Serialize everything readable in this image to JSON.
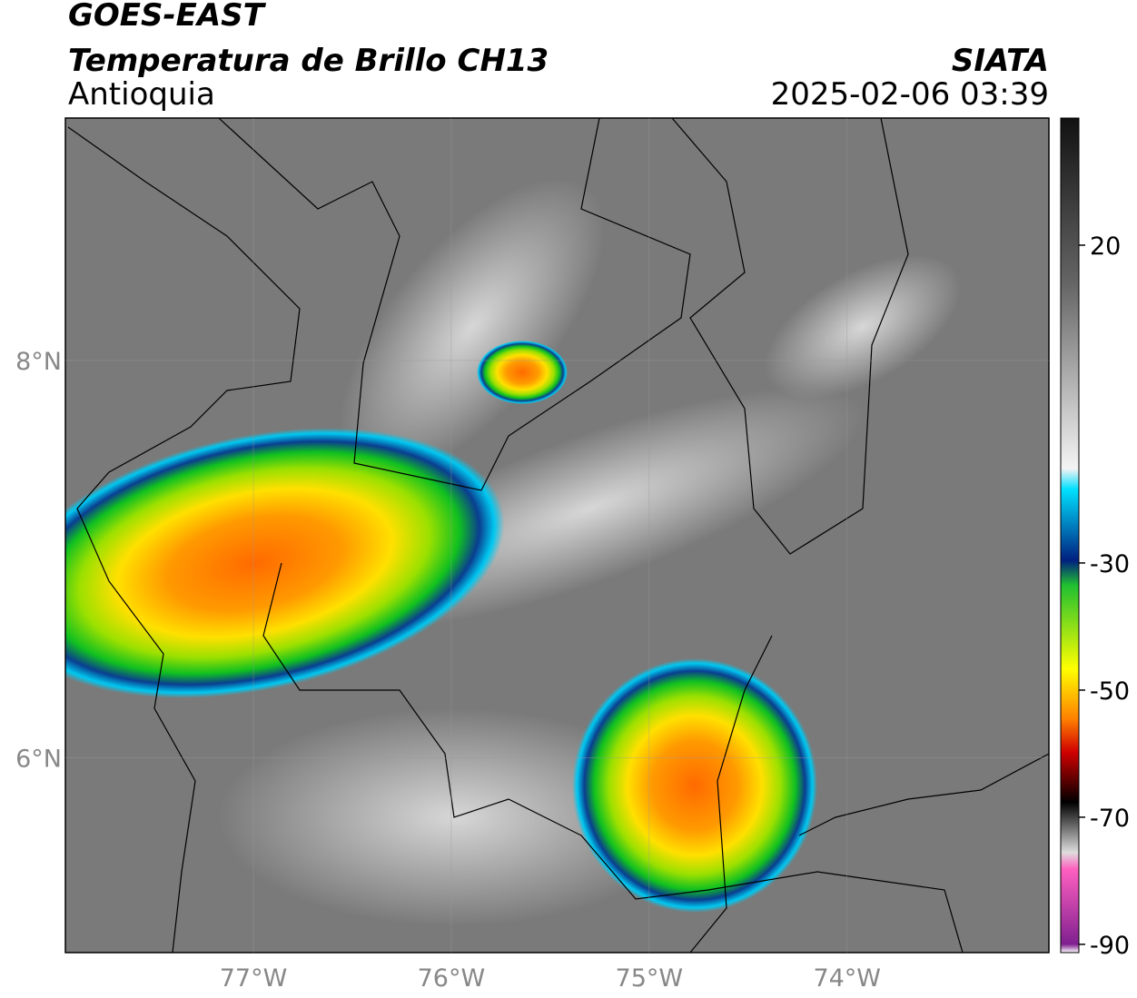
{
  "header": {
    "title": "GOES-EAST",
    "subtitle": "Temperatura de Brillo CH13",
    "region": "Antioquia",
    "source": "SIATA",
    "timestamp": "2025-02-06 03:39"
  },
  "map": {
    "lon_range": [
      -77.95,
      -72.98
    ],
    "lat_range": [
      5.02,
      9.22
    ],
    "lon_ticks": [
      {
        "value": -77,
        "label": "77°W"
      },
      {
        "value": -76,
        "label": "76°W"
      },
      {
        "value": -75,
        "label": "75°W"
      },
      {
        "value": -74,
        "label": "74°W"
      }
    ],
    "lat_ticks": [
      {
        "value": 8,
        "label": "8°N"
      },
      {
        "value": 6,
        "label": "6°N"
      }
    ],
    "grid": true
  },
  "colorbar": {
    "range": [
      -91.3,
      40
    ],
    "ticks": [
      20,
      -30,
      -50,
      -70,
      -90
    ]
  }
}
